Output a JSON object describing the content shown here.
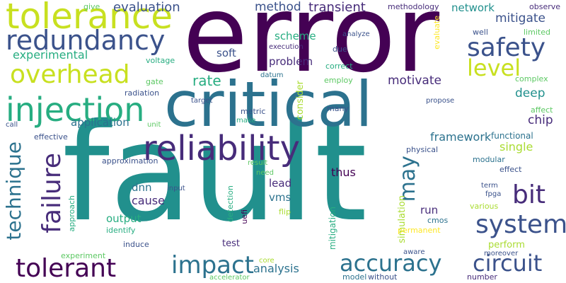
{
  "colors": {
    "background": "#ffffff",
    "palette": [
      "#440154",
      "#472c7a",
      "#3b528b",
      "#2c728e",
      "#21908d",
      "#27ad81",
      "#5cc863",
      "#aadc32",
      "#fde725"
    ]
  },
  "words": {
    "fault": "fault",
    "error": "error",
    "critical": "critical",
    "tolerance": "tolerance",
    "reliability": "reliability",
    "injection": "injection",
    "redundancy": "redundancy",
    "overhead": "overhead",
    "safety": "safety",
    "level": "level",
    "system": "system",
    "tolerant": "tolerant",
    "impact": "impact",
    "accuracy": "accuracy",
    "circuit": "circuit",
    "failure": "failure",
    "technique": "technique",
    "bit": "bit",
    "may": "may",
    "evaluation": "evaluation",
    "method": "method",
    "transient": "transient",
    "network": "network",
    "mitigate": "mitigate",
    "experimental": "experimental",
    "give": "give",
    "methodology": "methodology",
    "observe": "observe",
    "evaluate": "evaluate",
    "well": "well",
    "limited": "limited",
    "scheme": "scheme",
    "analyze": "analyze",
    "execution": "execution",
    "soft": "soft",
    "due": "due",
    "voltage": "voltage",
    "problem": "problem",
    "correct": "correct",
    "rate": "rate",
    "datum": "datum",
    "employ": "employ",
    "motivate": "motivate",
    "complex": "complex",
    "gate": "gate",
    "radiation": "radiation",
    "deep": "deep",
    "target": "target",
    "consider": "consider",
    "propose": "propose",
    "metric": "metric",
    "many": "many",
    "affect": "affect",
    "call": "call",
    "make": "make",
    "application": "application",
    "unit": "unit",
    "chip": "chip",
    "effective": "effective",
    "framework": "framework",
    "functional": "functional",
    "physical": "physical",
    "single": "single",
    "approximation": "approximation",
    "result": "result",
    "modular": "modular",
    "effect": "effect",
    "need": "need",
    "thus": "thus",
    "lead": "lead",
    "dnn": "dnn",
    "input": "input",
    "uefi": "uefi",
    "simulation": "simulation",
    "term": "term",
    "fpga": "fpga",
    "various": "various",
    "approach": "approach",
    "detection": "detection",
    "vms": "vms",
    "cause": "cause",
    "output": "output",
    "identify": "identify",
    "flip": "flip",
    "mitigation": "mitigation",
    "run": "run",
    "cmos": "cmos",
    "permanent": "permanent",
    "induce": "induce",
    "test": "test",
    "perform": "perform",
    "experiment": "experiment",
    "aware": "aware",
    "core": "core",
    "moreover": "moreover",
    "analysis": "analysis",
    "accelerator": "accelerator",
    "model": "model",
    "without": "without",
    "number": "number"
  }
}
